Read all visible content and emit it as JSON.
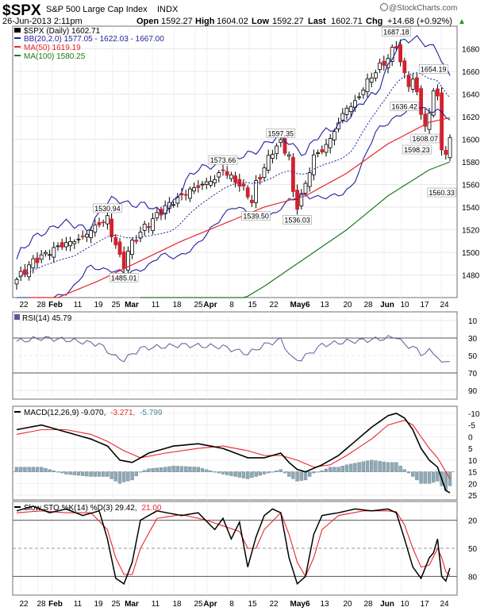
{
  "header": {
    "symbol": "$SPX",
    "name": "S&P 500 Large Cap Index",
    "exchange": "INDX",
    "watermark": "@StockCharts.com",
    "date": "26-Jun-2013 2:11pm",
    "open_label": "Open",
    "open": "1592.27",
    "high_label": "High",
    "high": "1604.02",
    "low_label": "Low",
    "low": "1592.27",
    "last_label": "Last",
    "last": "1602.71",
    "chg_label": "Chg",
    "chg": "+14.68 (+0.92%)",
    "chg_arrow": "▲"
  },
  "legend": {
    "price": "$SPX (Daily) 1602.71",
    "bb": "BB(20,2.0) 1577.05 - 1622.03 - 1667.00",
    "ma50": "MA(50) 1619.19",
    "ma100": "MA(100) 1580.25"
  },
  "x_labels": [
    "22",
    "28",
    "Feb",
    "11",
    "19",
    "25",
    "Mar",
    "11",
    "18",
    "25",
    "Apr",
    "8",
    "15",
    "22",
    "May6",
    "13",
    "20",
    "28",
    "Jun",
    "10",
    "17",
    "24"
  ],
  "rsi": {
    "label": "RSI(14) 45.79",
    "ticks": [
      "90",
      "70",
      "50",
      "30",
      "10"
    ]
  },
  "macd": {
    "label_main": "MACD(12,26,9) -9.070,",
    "label_signal": "-3.271,",
    "label_hist": "-5.799",
    "ticks": [
      "25",
      "20",
      "15",
      "10",
      "5",
      "0",
      "-5",
      "-10"
    ]
  },
  "sto": {
    "label_main": "Slow STO %K(14) %D(3) 29.42,",
    "label_d": "21.00",
    "ticks": [
      "80",
      "50",
      "20"
    ]
  },
  "colors": {
    "up": "#ffffff",
    "down": "#d4202c",
    "bb": "#1f1f9c",
    "ma50": "#e8262c",
    "ma100": "#1a7a1a",
    "line": "#000000",
    "rsi_line": "#5a5a99",
    "hist": "#8fa8b4",
    "border": "#6f6f6f",
    "grid": "#cfcfcf"
  },
  "chart_data": [
    {
      "type": "candlestick",
      "title": "$SPX (Daily) 1602.71",
      "ylim": [
        1460,
        1700
      ],
      "yticks": [
        1480,
        1500,
        1520,
        1540,
        1560,
        1580,
        1600,
        1620,
        1640,
        1660,
        1680
      ],
      "annotations": [
        {
          "text": "1530.94",
          "value": 1530.94
        },
        {
          "text": "1485.01",
          "value": 1485.01
        },
        {
          "text": "1573.66",
          "value": 1573.66
        },
        {
          "text": "1597.35",
          "value": 1597.35
        },
        {
          "text": "1539.50",
          "value": 1539.5
        },
        {
          "text": "1536.03",
          "value": 1536.03
        },
        {
          "text": "1687.18",
          "value": 1687.18
        },
        {
          "text": "1636.42",
          "value": 1636.42
        },
        {
          "text": "1654.19",
          "value": 1654.19
        },
        {
          "text": "1608.07",
          "value": 1608.07
        },
        {
          "text": "1598.23",
          "value": 1598.23
        },
        {
          "text": "1560.33",
          "value": 1560.33
        }
      ]
    },
    {
      "type": "line",
      "title": "RSI(14) 45.79",
      "ylim": [
        0,
        100
      ],
      "yticks": [
        10,
        30,
        50,
        70,
        90
      ],
      "last": 45.79
    },
    {
      "type": "line",
      "title": "MACD(12,26,9)",
      "ylim": [
        -12,
        28
      ],
      "yticks": [
        -10,
        -5,
        0,
        5,
        10,
        15,
        20,
        25
      ],
      "macd": -9.07,
      "signal": -3.271,
      "histogram": -5.799
    },
    {
      "type": "line",
      "title": "Slow STO %K(14) %D(3)",
      "ylim": [
        0,
        100
      ],
      "yticks": [
        20,
        50,
        80
      ],
      "k": 29.42,
      "d": 21.0
    }
  ]
}
